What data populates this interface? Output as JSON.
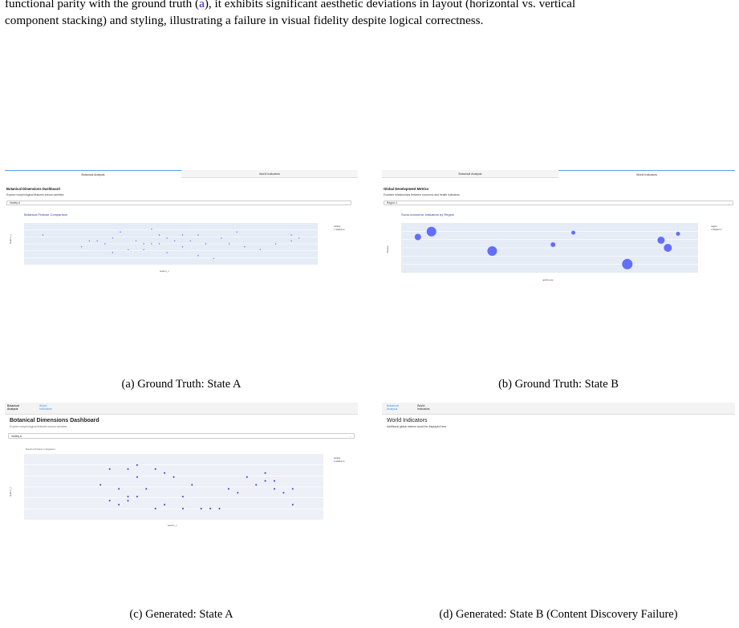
{
  "intro": {
    "line1_pre": "functional parity with the ground truth (",
    "line1_ref": "a",
    "line1_post": "), it exhibits significant aesthetic deviations in layout (horizontal vs. vertical",
    "line2": "component stacking) and styling, illustrating a failure in visual fidelity despite logical correctness."
  },
  "captions": {
    "a": "(a) Ground Truth: State A",
    "b": "(b) Ground Truth: State B",
    "c": "(c) Generated: State A",
    "d": "(d) Generated: State B (Content Discovery Failure)"
  },
  "tabs": {
    "botanical": "Botanical Analysis",
    "world": "World Indicators",
    "botanical_l1": "Botanical",
    "botanical_l2": "Analysis",
    "world_l1": "World",
    "world_l2": "Indicators"
  },
  "panel_a": {
    "title": "Botanical Dimensions Dashboard",
    "subtitle": "Explore morphological features across varieties.",
    "dropdown_value": "Variety A",
    "chart_title": "Botanical Feature Comparison",
    "xlabel": "feature_x",
    "ylabel": "feature_y",
    "legend_title": "variety",
    "legend_item": "Variety A",
    "colors": {
      "marker": "#636efa",
      "plot_bg": "#e5ecf6"
    }
  },
  "panel_b": {
    "title": "Global Development Metrics",
    "subtitle": "Examine relationships between economic and health indicators.",
    "dropdown_value": "Region 1",
    "chart_title": "Socio-economic Indicators by Region",
    "xlabel": "gdpPercap",
    "ylabel": "lifeExp",
    "legend_title": "region",
    "legend_item": "Region 1"
  },
  "panel_c": {
    "title": "Botanical Dimensions Dashboard",
    "subtitle": "Explore morphological features across varieties.",
    "dropdown_value": "Variety A",
    "chart_title": "Botanical Feature Comparison",
    "xlabel": "feature_x",
    "ylabel": "feature_y",
    "legend_title": "variety",
    "legend_item": "Variety A"
  },
  "panel_d": {
    "heading": "World Indicators",
    "text": "Additional global metrics would be displayed here."
  },
  "chart_data": [
    {
      "type": "scatter",
      "title": "Botanical Feature Comparison",
      "xlabel": "feature_x",
      "ylabel": "feature_y",
      "series": [
        {
          "name": "Variety A",
          "x": [
            4.5,
            5.0,
            5.1,
            5.2,
            5.3,
            5.4,
            5.4,
            5.5,
            5.6,
            5.7,
            5.8,
            5.8,
            5.9,
            5.9,
            6.0,
            6.0,
            6.1,
            6.1,
            6.2,
            6.3,
            6.3,
            6.4,
            6.5,
            6.5,
            6.6,
            6.7,
            6.8,
            6.9,
            7.0,
            7.1,
            7.3,
            7.5,
            7.7,
            7.7,
            7.8
          ],
          "y": [
            3.3,
            2.9,
            3.1,
            3.1,
            3.0,
            2.7,
            3.2,
            3.4,
            2.8,
            3.1,
            3.0,
            2.8,
            3.5,
            3.0,
            3.3,
            3.0,
            2.7,
            3.2,
            3.1,
            2.9,
            3.3,
            3.1,
            2.6,
            3.3,
            3.0,
            2.5,
            3.2,
            3.0,
            3.4,
            2.9,
            2.8,
            3.0,
            3.3,
            3.1,
            3.2
          ]
        }
      ]
    },
    {
      "type": "scatter",
      "title": "Socio-economic Indicators by Region",
      "xlabel": "gdpPercap",
      "ylabel": "lifeExp",
      "series": [
        {
          "name": "Region 1",
          "x": [
            1100,
            1300,
            2200,
            3100,
            3400,
            4200,
            4700,
            4800,
            4950
          ],
          "y": [
            75,
            80,
            62,
            68,
            79,
            50,
            72,
            65,
            78
          ]
        }
      ]
    },
    {
      "type": "scatter",
      "title": "Botanical Feature Comparison",
      "xlabel": "feature_x",
      "ylabel": "feature_y",
      "series": [
        {
          "name": "Variety A",
          "x": [
            4.8,
            4.9,
            4.9,
            5.0,
            5.0,
            5.1,
            5.1,
            5.1,
            5.2,
            5.2,
            5.2,
            5.3,
            5.4,
            5.4,
            5.5,
            5.5,
            5.6,
            5.7,
            5.7,
            5.8,
            5.9,
            6.0,
            6.1,
            6.2,
            6.3,
            6.4,
            6.5,
            6.6,
            6.6,
            6.7,
            6.7,
            6.8,
            6.9,
            6.9
          ],
          "y": [
            3.1,
            2.7,
            3.5,
            2.6,
            3.0,
            3.5,
            2.8,
            2.7,
            3.6,
            2.8,
            3.3,
            3.0,
            3.5,
            2.5,
            3.4,
            2.6,
            3.3,
            2.5,
            2.8,
            3.1,
            2.5,
            2.5,
            2.5,
            3.0,
            2.9,
            3.3,
            3.1,
            3.2,
            3.4,
            3.2,
            3.0,
            2.9,
            2.6,
            3.0
          ]
        }
      ]
    }
  ]
}
